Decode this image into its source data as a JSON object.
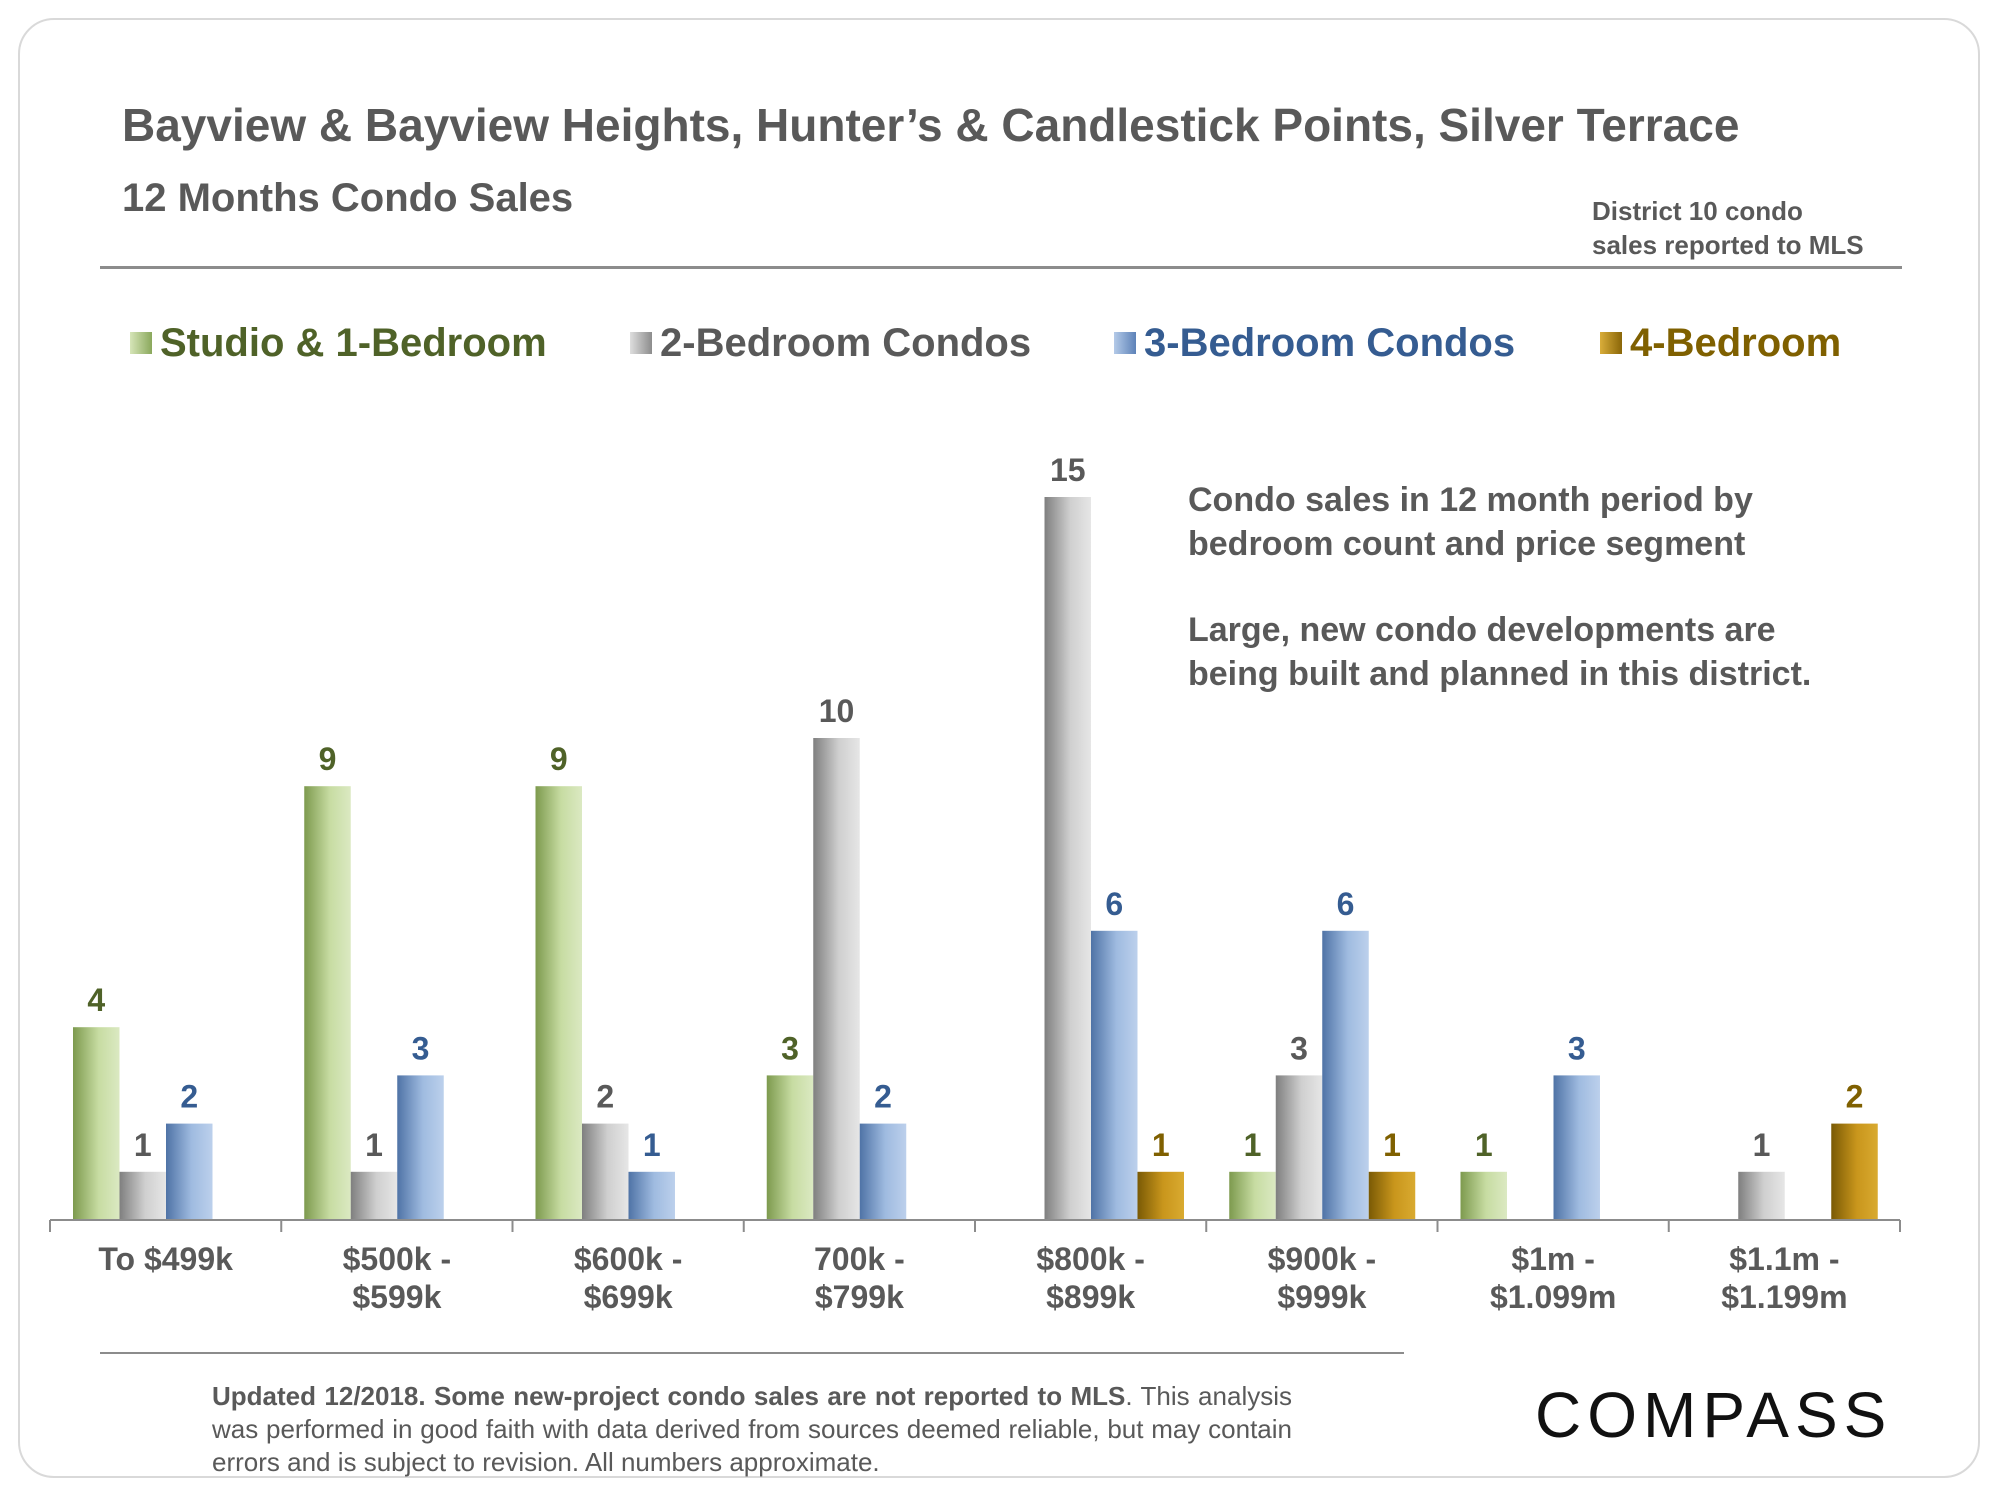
{
  "header": {
    "title": "Bayview & Bayview Heights, Hunter’s & Candlestick Points, Silver Terrace",
    "subtitle": "12 Months Condo Sales",
    "source_line1": "District 10 condo",
    "source_line2": "sales reported to MLS"
  },
  "notes": {
    "p1_line1": "Condo sales in 12 month period by",
    "p1_line2": "bedroom count and price segment",
    "p2_line1": "Large, new condo developments are",
    "p2_line2": "being built and planned in this district."
  },
  "footnote": {
    "bold": "Updated 12/2018. Some new-project condo sales are not reported to MLS",
    "rest": ". This analysis was performed in good faith with data derived from sources deemed reliable, but may contain errors and is subject to revision. All numbers approximate."
  },
  "brand": {
    "logo_text": "COMPASS"
  },
  "colors": {
    "studio": "#a9c47f",
    "two_bed": "#a6a6a6",
    "three_bed": "#7b9fcf",
    "four_bed": "#b58a1a",
    "studio_text": "#4f6228",
    "two_bed_text": "#595959",
    "three_bed_text": "#355c91",
    "four_bed_text": "#7f6000"
  },
  "chart_data": {
    "type": "bar",
    "title": "12 Months Condo Sales",
    "xlabel": "",
    "ylabel": "",
    "ylim": [
      0,
      15
    ],
    "legend_position": "top",
    "categories": [
      [
        "To $499k"
      ],
      [
        "$500k -",
        "$599k"
      ],
      [
        "$600k -",
        "$699k"
      ],
      [
        "700k -",
        "$799k"
      ],
      [
        "$800k -",
        "$899k"
      ],
      [
        "$900k -",
        "$999k"
      ],
      [
        "$1m -",
        "$1.099m"
      ],
      [
        "$1.1m -",
        "$1.199m"
      ]
    ],
    "series": [
      {
        "name": "Studio & 1-Bedroom",
        "key": "studio",
        "values": [
          4,
          9,
          9,
          3,
          null,
          1,
          1,
          null
        ]
      },
      {
        "name": "2-Bedroom Condos",
        "key": "two_bed",
        "values": [
          1,
          1,
          2,
          10,
          15,
          3,
          null,
          1
        ]
      },
      {
        "name": "3-Bedroom Condos",
        "key": "three_bed",
        "values": [
          2,
          3,
          1,
          2,
          6,
          6,
          3,
          null
        ]
      },
      {
        "name": "4-Bedroom",
        "key": "four_bed",
        "values": [
          null,
          null,
          null,
          null,
          1,
          1,
          null,
          2
        ]
      }
    ]
  }
}
